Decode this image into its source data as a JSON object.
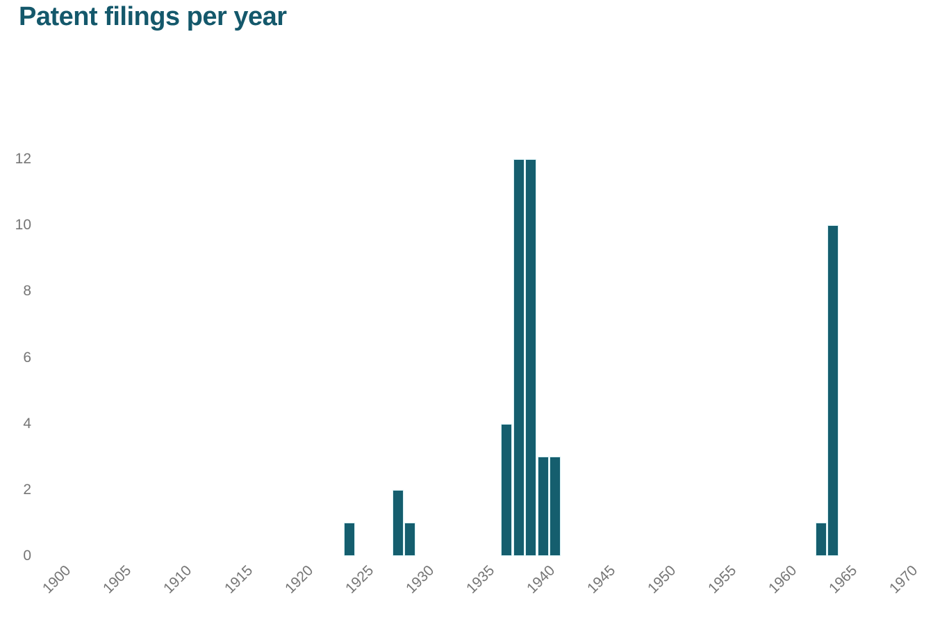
{
  "title": "Patent filings per year",
  "colors": {
    "title": "#14586b",
    "bar_fill": "#155e6e",
    "bar_edge": "#d6f0f4",
    "axis_labels": "#757575",
    "background": "#ffffff"
  },
  "chart_data": {
    "type": "bar",
    "title": "Patent filings per year",
    "xlabel": "",
    "ylabel": "",
    "x": [
      1924,
      1928,
      1929,
      1937,
      1938,
      1939,
      1940,
      1941,
      1963,
      1964
    ],
    "values": [
      1,
      2,
      1,
      4,
      12,
      12,
      3,
      3,
      1,
      10
    ],
    "xticks": [
      1900,
      1905,
      1910,
      1915,
      1920,
      1925,
      1930,
      1935,
      1940,
      1945,
      1950,
      1955,
      1960,
      1965,
      1970
    ],
    "yticks": [
      0,
      2,
      4,
      6,
      8,
      10,
      12
    ],
    "xlim": [
      1898,
      1972
    ],
    "ylim": [
      0,
      12
    ],
    "grid": false,
    "legend": false,
    "x_tick_rotation_deg": -45
  }
}
